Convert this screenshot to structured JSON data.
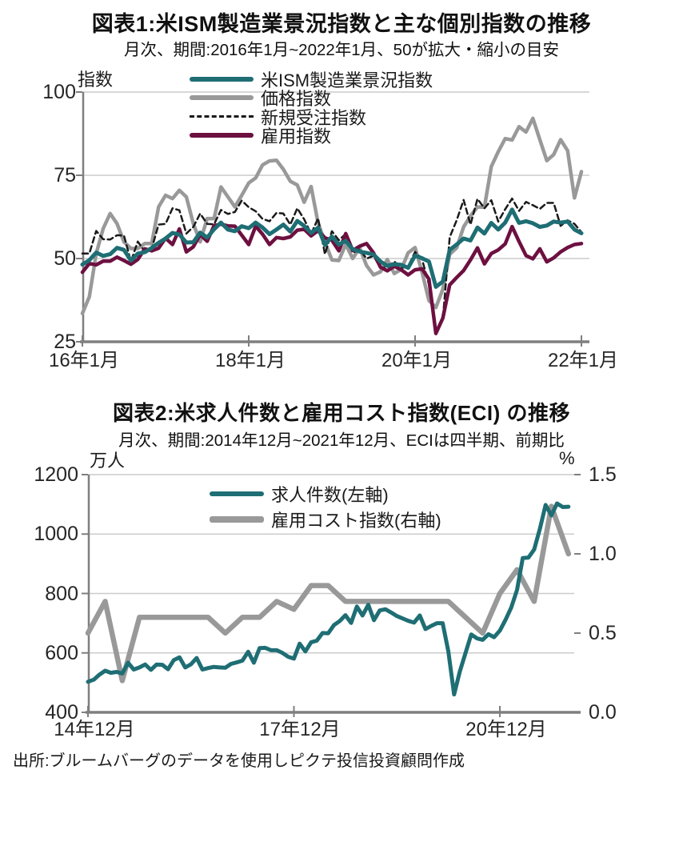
{
  "source": "出所:ブルームバーグのデータを使用しピクテ投信投資顧問作成",
  "colors": {
    "teal": "#1e6e74",
    "gray": "#999999",
    "near_black": "#1a1a1a",
    "maroon": "#6d1040",
    "axis": "#7f7f7f",
    "grid": "#cccccc",
    "text": "#1a1a1a"
  },
  "chart_data": [
    {
      "type": "line",
      "title": "図表1:米ISM製造業景況指数と主な個別指数の推移",
      "subtitle": "月次、期間:2016年1月~2022年1月、50が拡大・縮小の目安",
      "ylabel": "指数",
      "x_start": "2016-01",
      "x_end": "2022-01",
      "freq": "monthly",
      "ylim": [
        25,
        100
      ],
      "grid": true,
      "grid_values": [
        100,
        75,
        50
      ],
      "ytick_values": [
        100,
        75,
        50,
        25
      ],
      "ytick_labels": [
        "100",
        "75",
        "50",
        "25"
      ],
      "xtick_months": [
        0,
        24,
        48,
        72
      ],
      "xtick_labels": [
        "16年1月",
        "18年1月",
        "20年1月",
        "22年1月"
      ],
      "legend_position": "top",
      "series": [
        {
          "name": "米ISM製造業景況指数",
          "color": "#1e6e74",
          "style": "solid",
          "width": 5,
          "values": [
            48.2,
            49.5,
            51.8,
            50.8,
            51.3,
            53.2,
            52.6,
            49.4,
            51.5,
            51.9,
            53.2,
            54.7,
            56.0,
            57.7,
            57.2,
            54.8,
            54.9,
            57.8,
            56.3,
            58.8,
            60.8,
            58.7,
            58.2,
            59.7,
            59.1,
            60.8,
            59.3,
            57.3,
            58.7,
            60.2,
            58.1,
            61.3,
            59.8,
            57.7,
            59.3,
            54.1,
            56.6,
            54.2,
            55.3,
            52.8,
            52.1,
            51.7,
            51.2,
            49.1,
            47.8,
            48.3,
            48.1,
            47.2,
            50.9,
            50.1,
            49.1,
            41.5,
            43.1,
            52.6,
            54.2,
            56.0,
            55.4,
            59.3,
            57.5,
            60.7,
            58.7,
            60.8,
            64.7,
            60.7,
            61.2,
            60.6,
            59.5,
            59.9,
            61.1,
            60.8,
            61.1,
            58.7,
            57.6
          ]
        },
        {
          "name": "価格指数",
          "color": "#999999",
          "style": "solid",
          "width": 4.5,
          "values": [
            33.5,
            38.5,
            51.5,
            59.0,
            63.5,
            60.5,
            55.0,
            53.0,
            53.0,
            54.5,
            54.5,
            65.5,
            69.0,
            68.0,
            70.5,
            68.5,
            60.5,
            55.0,
            62.0,
            62.0,
            71.5,
            68.5,
            65.5,
            69.0,
            72.7,
            74.2,
            78.1,
            79.3,
            79.5,
            76.8,
            73.2,
            72.1,
            66.9,
            71.6,
            60.7,
            54.9,
            49.6,
            49.4,
            54.3,
            50.0,
            53.2,
            47.9,
            45.1,
            46.0,
            49.7,
            45.5,
            46.7,
            51.7,
            53.3,
            45.9,
            37.4,
            35.3,
            40.8,
            51.3,
            53.2,
            59.5,
            62.8,
            65.5,
            65.4,
            77.6,
            82.1,
            86.0,
            85.6,
            89.6,
            88.0,
            92.1,
            85.7,
            79.4,
            81.2,
            85.7,
            82.4,
            68.2,
            76.1
          ]
        },
        {
          "name": "新規受注指数",
          "color": "#1a1a1a",
          "style": "dashed",
          "width": 2.5,
          "values": [
            51.5,
            51.5,
            58.3,
            55.8,
            55.7,
            57.0,
            56.9,
            49.1,
            55.1,
            52.1,
            53.0,
            60.2,
            60.4,
            65.1,
            64.5,
            57.5,
            59.5,
            63.5,
            60.4,
            60.3,
            64.6,
            63.4,
            64.0,
            67.4,
            65.4,
            64.2,
            61.9,
            61.2,
            63.7,
            63.5,
            60.2,
            65.1,
            61.8,
            57.4,
            62.1,
            51.3,
            58.2,
            55.5,
            57.4,
            51.7,
            52.7,
            50.0,
            50.8,
            47.2,
            47.3,
            49.1,
            47.2,
            47.6,
            52.0,
            49.8,
            42.2,
            27.1,
            31.8,
            56.4,
            61.5,
            67.6,
            60.2,
            67.9,
            65.1,
            67.5,
            61.1,
            64.8,
            68.0,
            64.3,
            67.0,
            66.0,
            64.9,
            66.7,
            66.7,
            59.8,
            61.5,
            60.4,
            57.9
          ]
        },
        {
          "name": "雇用指数",
          "color": "#6d1040",
          "style": "solid",
          "width": 4.5,
          "values": [
            45.9,
            48.5,
            48.1,
            49.2,
            49.2,
            50.4,
            49.4,
            48.3,
            49.7,
            52.9,
            52.3,
            53.1,
            56.1,
            54.2,
            58.9,
            52.0,
            53.5,
            57.2,
            55.2,
            59.9,
            60.3,
            59.8,
            59.7,
            57.0,
            54.2,
            59.7,
            57.3,
            54.2,
            56.3,
            56.0,
            56.5,
            58.5,
            58.8,
            56.8,
            58.4,
            56.2,
            55.5,
            52.3,
            57.5,
            52.4,
            53.7,
            54.5,
            51.7,
            47.4,
            46.3,
            47.7,
            46.6,
            45.1,
            46.6,
            46.9,
            43.8,
            27.5,
            32.1,
            42.1,
            44.3,
            46.4,
            49.6,
            53.2,
            48.4,
            51.5,
            52.6,
            54.4,
            59.6,
            55.1,
            50.9,
            49.9,
            52.9,
            49.0,
            50.2,
            52.0,
            53.3,
            54.2,
            54.5
          ]
        }
      ]
    },
    {
      "type": "line",
      "title": "図表2:米求人件数と雇用コスト指数(ECI) の推移",
      "subtitle": "月次、期間:2014年12月~2021年12月、ECIは四半期、前期比",
      "ylabel_left": "万人",
      "ylabel_right": "%",
      "x_start": "2014-12",
      "x_end": "2021-12",
      "ylim_left": [
        400,
        1200
      ],
      "ylim_right": [
        0,
        1.5
      ],
      "grid": true,
      "grid_values_left": [
        1200,
        1000,
        800,
        600
      ],
      "ytick_values_left": [
        1200,
        1000,
        800,
        600,
        400
      ],
      "ytick_labels_left": [
        "1200",
        "1000",
        "800",
        "600",
        "400"
      ],
      "ytick_values_right": [
        1.5,
        1.0,
        0.5,
        0.0
      ],
      "ytick_labels_right": [
        "1.5",
        "1.0",
        "0.5",
        "0.0"
      ],
      "xtick_months": [
        0,
        36,
        72
      ],
      "xtick_labels": [
        "14年12月",
        "17年12月",
        "20年12月"
      ],
      "legend_position": "top",
      "series": [
        {
          "name": "求人件数(左軸)",
          "axis": "left",
          "freq": "monthly",
          "color": "#1e6e74",
          "style": "solid",
          "width": 5,
          "values": [
            503,
            510,
            527,
            540,
            533,
            536,
            531,
            567,
            544,
            551,
            561,
            543,
            561,
            560,
            545,
            576,
            585,
            551,
            562,
            583,
            544,
            549,
            553,
            551,
            550,
            563,
            568,
            574,
            604,
            567,
            616,
            617,
            609,
            609,
            600,
            587,
            581,
            631,
            605,
            636,
            641,
            667,
            666,
            694,
            707,
            727,
            701,
            756,
            726,
            762,
            710,
            743,
            747,
            736,
            724,
            716,
            708,
            702,
            726,
            680,
            691,
            700,
            700,
            605,
            460,
            537,
            600,
            662,
            649,
            644,
            663,
            653,
            675,
            712,
            753,
            812,
            919,
            921,
            948,
            1018,
            1098,
            1063,
            1103,
            1091,
            1092
          ]
        },
        {
          "name": "雇用コスト指数(右軸)",
          "axis": "right",
          "freq": "quarterly",
          "color": "#999999",
          "style": "solid",
          "width": 6.5,
          "values": [
            0.5,
            0.7,
            0.2,
            0.6,
            0.6,
            0.6,
            0.6,
            0.6,
            0.5,
            0.6,
            0.6,
            0.7,
            0.65,
            0.8,
            0.8,
            0.7,
            0.7,
            0.7,
            0.7,
            0.7,
            0.7,
            0.7,
            0.6,
            0.5,
            0.75,
            0.9,
            0.7,
            1.3,
            1.0
          ]
        }
      ]
    }
  ]
}
